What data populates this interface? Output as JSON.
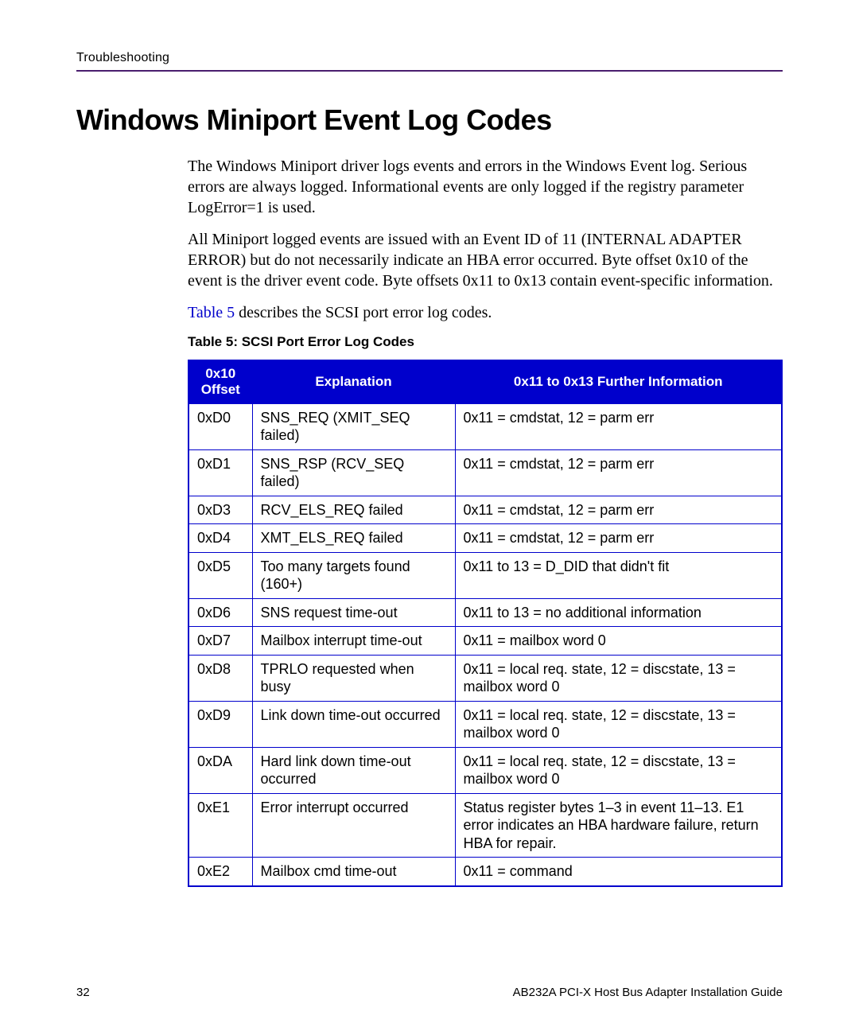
{
  "header": {
    "section": "Troubleshooting"
  },
  "title": "Windows Miniport Event Log Codes",
  "paragraphs": {
    "p1": "The Windows Miniport driver logs events and errors in the Windows Event log. Serious errors are always logged. Informational events are only logged if the registry parameter LogError=1 is used.",
    "p2": "All Miniport logged events are issued with an Event ID of 11 (INTERNAL ADAPTER ERROR) but do not necessarily indicate an HBA error occurred. Byte offset 0x10 of the event is the driver event code. Byte offsets 0x11 to 0x13 contain event-specific information.",
    "p3_ref": "Table 5",
    "p3_rest": " describes the SCSI port error log codes."
  },
  "table": {
    "caption": "Table 5:  SCSI Port Error Log Codes",
    "headers": {
      "col1_line1": "0x10",
      "col1_line2": "Offset",
      "col2": "Explanation",
      "col3": "0x11 to 0x13 Further Information"
    },
    "rows": [
      {
        "offset": "0xD0",
        "explanation": "SNS_REQ (XMIT_SEQ failed)",
        "info": "0x11 = cmdstat, 12 = parm err"
      },
      {
        "offset": "0xD1",
        "explanation": "SNS_RSP (RCV_SEQ failed)",
        "info": "0x11 = cmdstat, 12 = parm err"
      },
      {
        "offset": "0xD3",
        "explanation": "RCV_ELS_REQ failed",
        "info": "0x11 = cmdstat, 12 = parm err"
      },
      {
        "offset": "0xD4",
        "explanation": "XMT_ELS_REQ failed",
        "info": "0x11 = cmdstat, 12 = parm err"
      },
      {
        "offset": "0xD5",
        "explanation": "Too many targets found (160+)",
        "info": "0x11 to 13 = D_DID that didn't fit"
      },
      {
        "offset": "0xD6",
        "explanation": "SNS request time-out",
        "info": "0x11 to 13 = no additional information"
      },
      {
        "offset": "0xD7",
        "explanation": "Mailbox interrupt time-out",
        "info": "0x11 = mailbox word 0"
      },
      {
        "offset": "0xD8",
        "explanation": "TPRLO requested when busy",
        "info": "0x11 = local req. state, 12 = discstate, 13 = mailbox word 0"
      },
      {
        "offset": "0xD9",
        "explanation": "Link down time-out occurred",
        "info": "0x11 = local req. state, 12 = discstate, 13 = mailbox word 0"
      },
      {
        "offset": "0xDA",
        "explanation": "Hard link down time-out occurred",
        "info": "0x11 = local req. state, 12 = discstate, 13 = mailbox word 0"
      },
      {
        "offset": "0xE1",
        "explanation": "Error interrupt occurred",
        "info": "Status register bytes 1–3 in event 11–13. E1 error indicates an HBA hardware failure, return HBA for repair."
      },
      {
        "offset": "0xE2",
        "explanation": "Mailbox cmd time-out",
        "info": "0x11 = command"
      }
    ]
  },
  "footer": {
    "page": "32",
    "doc": "AB232A PCI-X Host Bus Adapter Installation Guide"
  },
  "colors": {
    "accent": "#4a1e6e",
    "link": "#0000cc",
    "table_border": "#0000cc",
    "table_header_bg": "#0000cc",
    "table_header_fg": "#ffffff"
  }
}
